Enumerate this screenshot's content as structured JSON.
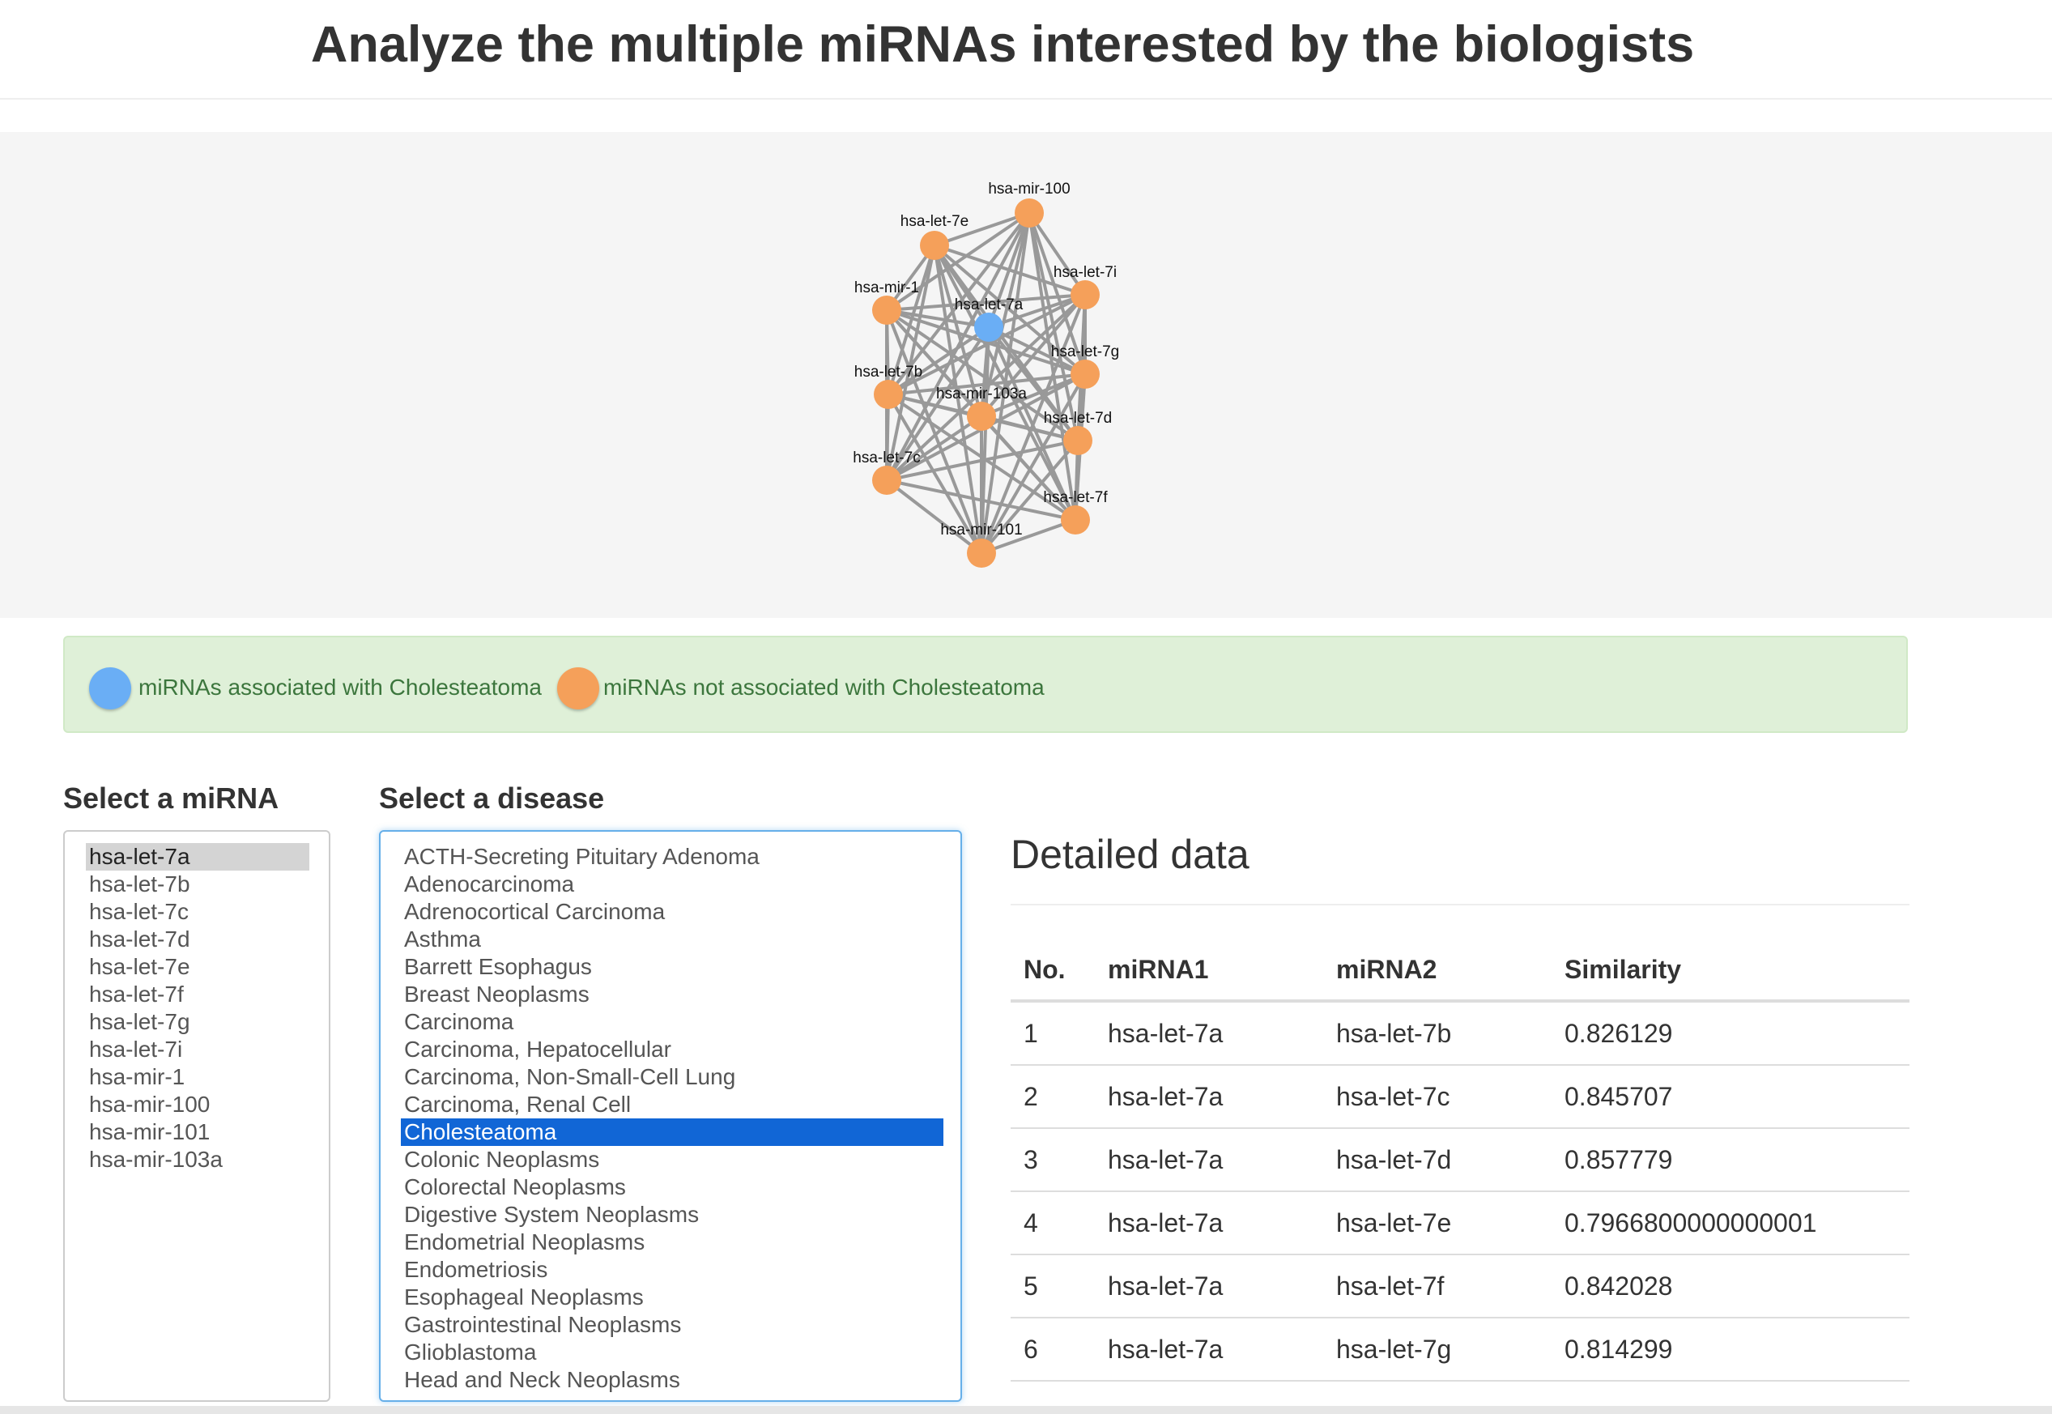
{
  "page": {
    "title": "Analyze the multiple miRNAs interested by the biologists"
  },
  "colors": {
    "associated": "#6aaef5",
    "not_associated": "#f5a05a",
    "edge": "#999999",
    "selected_disease": "#1166d6"
  },
  "graph": {
    "nodes": [
      {
        "id": "hsa-mir-100",
        "label": "hsa-mir-100",
        "associated": false
      },
      {
        "id": "hsa-let-7e",
        "label": "hsa-let-7e",
        "associated": false
      },
      {
        "id": "hsa-let-7i",
        "label": "hsa-let-7i",
        "associated": false
      },
      {
        "id": "hsa-mir-1",
        "label": "hsa-mir-1",
        "associated": false
      },
      {
        "id": "hsa-let-7a",
        "label": "hsa-let-7a",
        "associated": true
      },
      {
        "id": "hsa-let-7g",
        "label": "hsa-let-7g",
        "associated": false
      },
      {
        "id": "hsa-let-7b",
        "label": "hsa-let-7b",
        "associated": false
      },
      {
        "id": "hsa-mir-103a",
        "label": "hsa-mir-103a",
        "associated": false
      },
      {
        "id": "hsa-let-7d",
        "label": "hsa-let-7d",
        "associated": false
      },
      {
        "id": "hsa-let-7c",
        "label": "hsa-let-7c",
        "associated": false
      },
      {
        "id": "hsa-let-7f",
        "label": "hsa-let-7f",
        "associated": false
      },
      {
        "id": "hsa-mir-101",
        "label": "hsa-mir-101",
        "associated": false
      }
    ]
  },
  "legend": {
    "associated": "miRNAs associated with Cholesteatoma",
    "not_associated": "miRNAs not associated with Cholesteatoma"
  },
  "mirna_select": {
    "label": "Select a miRNA",
    "selected": "hsa-let-7a",
    "options": [
      "hsa-let-7a",
      "hsa-let-7b",
      "hsa-let-7c",
      "hsa-let-7d",
      "hsa-let-7e",
      "hsa-let-7f",
      "hsa-let-7g",
      "hsa-let-7i",
      "hsa-mir-1",
      "hsa-mir-100",
      "hsa-mir-101",
      "hsa-mir-103a"
    ]
  },
  "disease_select": {
    "label": "Select a disease",
    "selected": "Cholesteatoma",
    "options": [
      "ACTH-Secreting Pituitary Adenoma",
      "Adenocarcinoma",
      "Adrenocortical Carcinoma",
      "Asthma",
      "Barrett Esophagus",
      "Breast Neoplasms",
      "Carcinoma",
      "Carcinoma, Hepatocellular",
      "Carcinoma, Non-Small-Cell Lung",
      "Carcinoma, Renal Cell",
      "Cholesteatoma",
      "Colonic Neoplasms",
      "Colorectal Neoplasms",
      "Digestive System Neoplasms",
      "Endometrial Neoplasms",
      "Endometriosis",
      "Esophageal Neoplasms",
      "Gastrointestinal Neoplasms",
      "Glioblastoma",
      "Head and Neck Neoplasms"
    ]
  },
  "detail": {
    "heading": "Detailed data",
    "columns": [
      "No.",
      "miRNA1",
      "miRNA2",
      "Similarity"
    ],
    "rows": [
      [
        "1",
        "hsa-let-7a",
        "hsa-let-7b",
        "0.826129"
      ],
      [
        "2",
        "hsa-let-7a",
        "hsa-let-7c",
        "0.845707"
      ],
      [
        "3",
        "hsa-let-7a",
        "hsa-let-7d",
        "0.857779"
      ],
      [
        "4",
        "hsa-let-7a",
        "hsa-let-7e",
        "0.7966800000000001"
      ],
      [
        "5",
        "hsa-let-7a",
        "hsa-let-7f",
        "0.842028"
      ],
      [
        "6",
        "hsa-let-7a",
        "hsa-let-7g",
        "0.814299"
      ]
    ]
  }
}
